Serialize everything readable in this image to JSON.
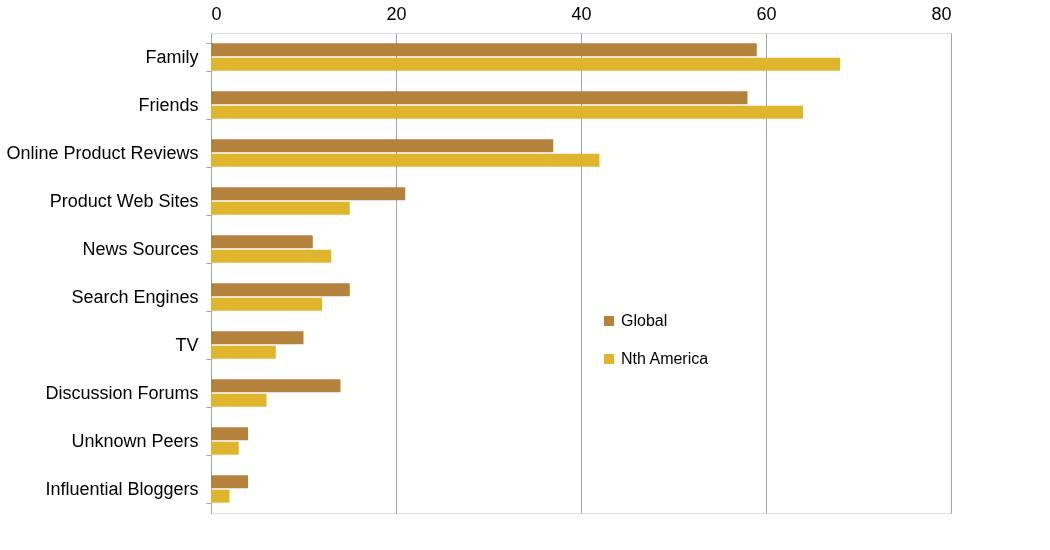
{
  "chart_data": {
    "type": "bar",
    "orientation": "horizontal",
    "categories": [
      "Family",
      "Friends",
      "Online Product Reviews",
      "Product Web Sites",
      "News Sources",
      "Search Engines",
      "TV",
      "Discussion Forums",
      "Unknown Peers",
      "Influential Bloggers"
    ],
    "series": [
      {
        "name": "Global",
        "color": "#b5823c",
        "values": [
          59,
          58,
          37,
          21,
          11,
          15,
          10,
          14,
          4,
          4
        ]
      },
      {
        "name": "Nth America",
        "color": "#e0b52e",
        "values": [
          68,
          64,
          42,
          15,
          13,
          12,
          7,
          6,
          3,
          2
        ]
      }
    ],
    "xlim": [
      0,
      80
    ],
    "xticks": [
      0,
      20,
      40,
      60,
      80
    ],
    "grid": "x",
    "legend": "right"
  }
}
